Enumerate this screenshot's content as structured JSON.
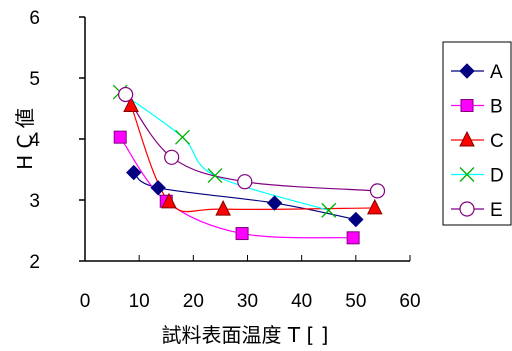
{
  "chart_data": {
    "type": "line",
    "title": "",
    "xlabel": "試料表面温度 T [ ]",
    "ylabel": "H C 値",
    "xlim": [
      0,
      60
    ],
    "ylim": [
      2,
      6
    ],
    "xticks": [
      "0",
      "10",
      "20",
      "30",
      "40",
      "50",
      "60"
    ],
    "yticks": [
      "2",
      "3",
      "4",
      "5",
      "6"
    ],
    "grid": false,
    "legend_position": "right",
    "smooth": true,
    "series": [
      {
        "name": "A",
        "color": "#000080",
        "marker": "diamond",
        "line": "#000080",
        "x": [
          9,
          13.5,
          35,
          50
        ],
        "y": [
          3.45,
          3.2,
          2.95,
          2.68
        ]
      },
      {
        "name": "B",
        "color": "#ff00ff",
        "marker": "square",
        "line": "#ff00ff",
        "x": [
          6.5,
          15,
          29,
          49.5
        ],
        "y": [
          4.03,
          2.98,
          2.45,
          2.38
        ]
      },
      {
        "name": "C",
        "color": "#ff0000",
        "marker": "triangle",
        "line": "#ff0000",
        "x": [
          8.5,
          15.5,
          25.5,
          53.5
        ],
        "y": [
          4.55,
          2.97,
          2.85,
          2.87
        ]
      },
      {
        "name": "D",
        "color": "#00b000",
        "marker": "x",
        "line": "#00ffff",
        "x": [
          6.5,
          18,
          24,
          45
        ],
        "y": [
          4.77,
          4.03,
          3.4,
          2.83
        ]
      },
      {
        "name": "E",
        "color": "#800080",
        "marker": "circle",
        "line": "#800080",
        "x": [
          7.5,
          16,
          29.5,
          54
        ],
        "y": [
          4.73,
          3.7,
          3.3,
          3.15
        ]
      }
    ]
  }
}
